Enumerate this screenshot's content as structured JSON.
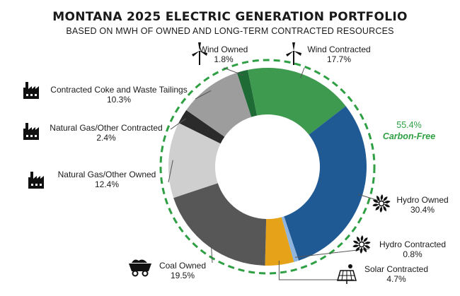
{
  "title": "MONTANA 2025 ELECTRIC GENERATION PORTFOLIO",
  "subtitle": "BASED ON MWH OF OWNED AND LONG-TERM CONTRACTED RESOURCES",
  "carbon_free": {
    "value": "55.4%",
    "label": "Carbon-Free",
    "color": "#2ea043"
  },
  "chart_data": {
    "type": "pie",
    "donut": true,
    "start_angle_deg": -18,
    "order": "clockwise",
    "slices": [
      {
        "label": "Wind Owned",
        "pct_label": "1.8%",
        "value": 1.8,
        "color": "#1e6b35",
        "icon": "wind-turbine-icon"
      },
      {
        "label": "Wind Contracted",
        "pct_label": "17.7%",
        "value": 17.7,
        "color": "#3e9a4f",
        "icon": "wind-turbine-icon"
      },
      {
        "label": "Hydro Owned",
        "pct_label": "30.4%",
        "value": 30.4,
        "color": "#1f5a94",
        "icon": "water-turbine-icon"
      },
      {
        "label": "Hydro Contracted",
        "pct_label": "0.8%",
        "value": 0.8,
        "color": "#8fb4de",
        "icon": "water-turbine-icon"
      },
      {
        "label": "Solar Contracted",
        "pct_label": "4.7%",
        "value": 4.7,
        "color": "#e6a31a",
        "icon": "solar-panel-icon"
      },
      {
        "label": "Coal Owned",
        "pct_label": "19.5%",
        "value": 19.5,
        "color": "#575757",
        "icon": "coal-cart-icon"
      },
      {
        "label": "Natural Gas/Other Owned",
        "pct_label": "12.4%",
        "value": 12.4,
        "color": "#cfcfcf",
        "icon": "factory-icon"
      },
      {
        "label": "Natural Gas/Other Contracted",
        "pct_label": "2.4%",
        "value": 2.4,
        "color": "#2b2b2b",
        "icon": "factory-icon"
      },
      {
        "label": "Contracted Coke and Waste Tailings",
        "pct_label": "10.3%",
        "value": 10.3,
        "color": "#9d9d9d",
        "icon": "factory-icon"
      }
    ]
  }
}
